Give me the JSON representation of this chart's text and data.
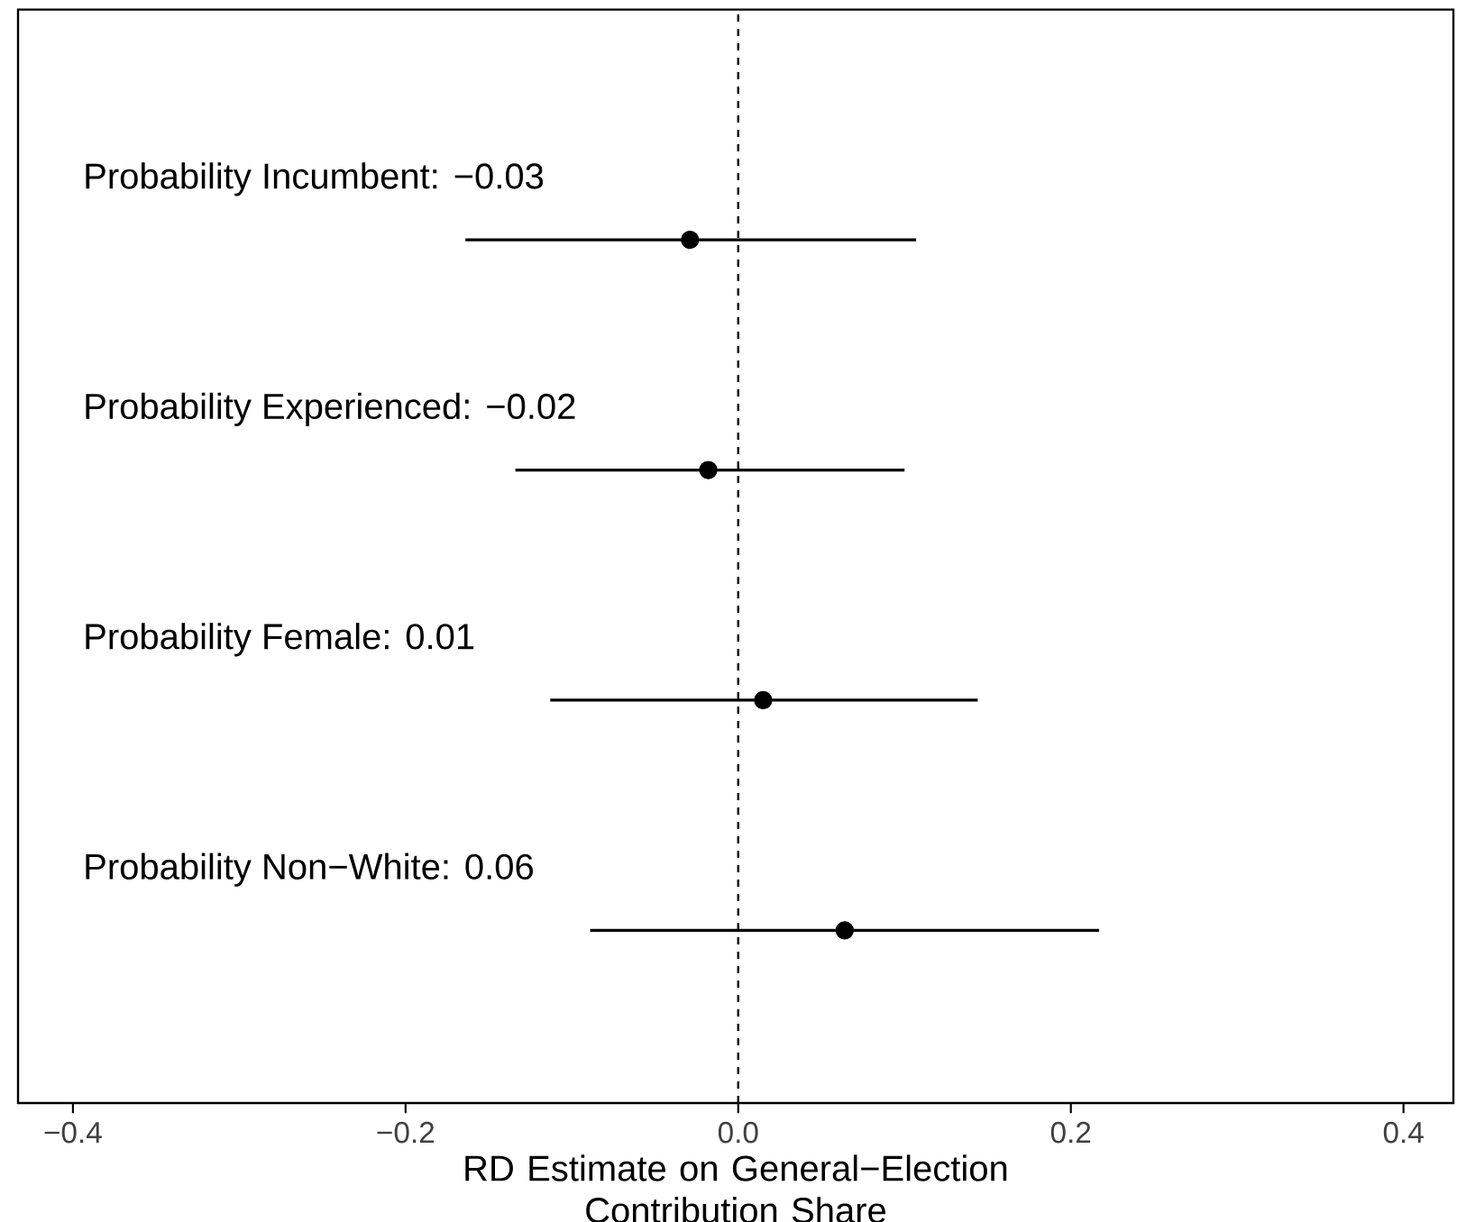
{
  "chart_data": {
    "type": "scatter",
    "orientation": "horizontal",
    "categories": [
      null,
      null,
      null,
      null
    ],
    "series": [
      {
        "color": "#000000",
        "values": [
          -0.029,
          -0.018,
          0.015,
          0.064
        ],
        "errors": [
          [
            -0.164,
            0.107
          ],
          [
            -0.134,
            0.1
          ],
          [
            -0.113,
            0.144
          ],
          [
            -0.089,
            0.217
          ]
        ]
      }
    ],
    "annotations": [
      "Probability Incumbent: −0.03",
      "Probability Experienced: −0.02",
      "Probability Female: 0.01",
      "Probability Non−White: 0.06"
    ],
    "xlabel": "RD Estimate on General−Election Contribution Share",
    "xlim": [
      -0.433,
      0.43
    ],
    "xticks": [
      {
        "value": -0.4,
        "label": "−0.4"
      },
      {
        "value": -0.2,
        "label": "−0.2"
      },
      {
        "value": 0.0,
        "label": "0.0"
      },
      {
        "value": 0.2,
        "label": "0.2"
      },
      {
        "value": 0.4,
        "label": "0.4"
      }
    ],
    "ref_lines": [
      {
        "axis": "x",
        "value": 0,
        "line_style": "dashed",
        "color": "#000000"
      }
    ],
    "tick_labels": "x",
    "grid": false
  }
}
